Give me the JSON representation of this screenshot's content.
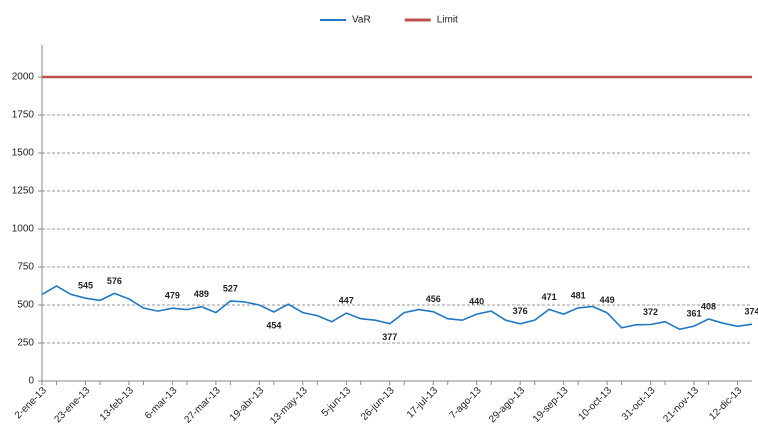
{
  "chart_data": {
    "type": "line",
    "categories": [
      "2-ene-13",
      null,
      null,
      "23-ene-13",
      null,
      null,
      "13-feb-13",
      null,
      null,
      "6-mar-13",
      null,
      null,
      "27-mar-13",
      null,
      null,
      "19-abr-13",
      null,
      null,
      "13-may-13",
      null,
      null,
      "5-jun-13",
      null,
      null,
      "26-jun-13",
      null,
      null,
      "17-jul-13",
      null,
      null,
      "7-ago-13",
      null,
      null,
      "29-ago-13",
      null,
      null,
      "19-sep-13",
      null,
      null,
      "10-oct-13",
      null,
      null,
      "31-oct-13",
      null,
      null,
      "21-nov-13",
      null,
      null,
      "12-dic-13",
      null
    ],
    "series": [
      {
        "name": "VaR",
        "color": "#1f78c1",
        "values": [
          570,
          625,
          570,
          545,
          530,
          576,
          540,
          480,
          460,
          479,
          470,
          489,
          450,
          527,
          520,
          500,
          454,
          505,
          450,
          430,
          390,
          447,
          410,
          400,
          377,
          450,
          470,
          456,
          410,
          400,
          440,
          460,
          400,
          376,
          400,
          471,
          440,
          481,
          490,
          449,
          350,
          370,
          372,
          390,
          340,
          361,
          408,
          380,
          360,
          374
        ],
        "value_labels": [
          null,
          null,
          null,
          "545",
          null,
          "576",
          null,
          null,
          null,
          "479",
          null,
          "489",
          null,
          "527",
          null,
          null,
          "454",
          null,
          null,
          null,
          null,
          "447",
          null,
          null,
          "377",
          null,
          null,
          "456",
          null,
          null,
          "440",
          null,
          null,
          "376",
          null,
          "471",
          null,
          "481",
          null,
          "449",
          null,
          null,
          "372",
          null,
          null,
          "361",
          "408",
          null,
          null,
          "374"
        ]
      },
      {
        "name": "Limit",
        "color": "#c0504d",
        "values": [
          2000,
          2000,
          2000,
          2000,
          2000,
          2000,
          2000,
          2000,
          2000,
          2000,
          2000,
          2000,
          2000,
          2000,
          2000,
          2000,
          2000,
          2000,
          2000,
          2000,
          2000,
          2000,
          2000,
          2000,
          2000,
          2000,
          2000,
          2000,
          2000,
          2000,
          2000,
          2000,
          2000,
          2000,
          2000,
          2000,
          2000,
          2000,
          2000,
          2000,
          2000,
          2000,
          2000,
          2000,
          2000,
          2000,
          2000,
          2000,
          2000,
          2000
        ]
      }
    ],
    "ylim": [
      0,
      2250
    ],
    "yticks": [
      0,
      250,
      500,
      750,
      1000,
      1250,
      1500,
      1750,
      2000
    ],
    "grid": true,
    "legend": "top"
  }
}
